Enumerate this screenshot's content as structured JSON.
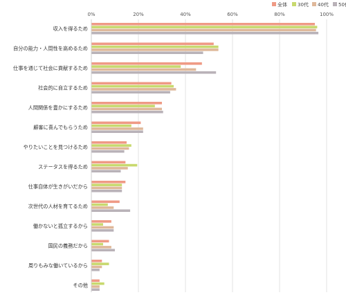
{
  "chart_data": {
    "type": "bar",
    "orientation": "horizontal",
    "categories": [
      "収入を得るため",
      "自分の能力・人間性を高めるため",
      "仕事を通じて社会に貢献するため",
      "社会的に自立するため",
      "人間関係を豊かにするため",
      "顧客に喜んでもらうため",
      "やりたいことを見つけるため",
      "ステータスを得るため",
      "仕事自体が生きがいだから",
      "次世代の人材を育てるため",
      "働かないと孤立するから",
      "国民の義務だから",
      "周りもみな働いているから",
      "その他"
    ],
    "series": [
      {
        "name": "全体",
        "color": "#ef9a85",
        "values": [
          95,
          52,
          47,
          34,
          30,
          21,
          15,
          14.5,
          14.5,
          12,
          8.5,
          7.5,
          4.5,
          3.5
        ]
      },
      {
        "name": "30代",
        "color": "#c8d96e",
        "values": [
          96,
          54,
          38,
          35,
          27,
          17,
          17,
          19.5,
          13,
          7,
          5,
          5,
          7.5,
          5.5
        ]
      },
      {
        "name": "40代",
        "color": "#dfb89a",
        "values": [
          95.5,
          54,
          44.5,
          36,
          30,
          22,
          16,
          15.5,
          13,
          9.5,
          9.5,
          8.5,
          4.5,
          3.5
        ]
      },
      {
        "name": "50代",
        "color": "#b9b2b8",
        "values": [
          96.5,
          47.5,
          53,
          33.5,
          30.5,
          22,
          14,
          12.5,
          13,
          16.5,
          9.5,
          10,
          3.5,
          3.5
        ]
      }
    ],
    "xlim": [
      0,
      100
    ],
    "x_ticks": [
      "0%",
      "20%",
      "40%",
      "60%",
      "80%",
      "100%"
    ],
    "grid": true,
    "legend_position": "top-right"
  }
}
